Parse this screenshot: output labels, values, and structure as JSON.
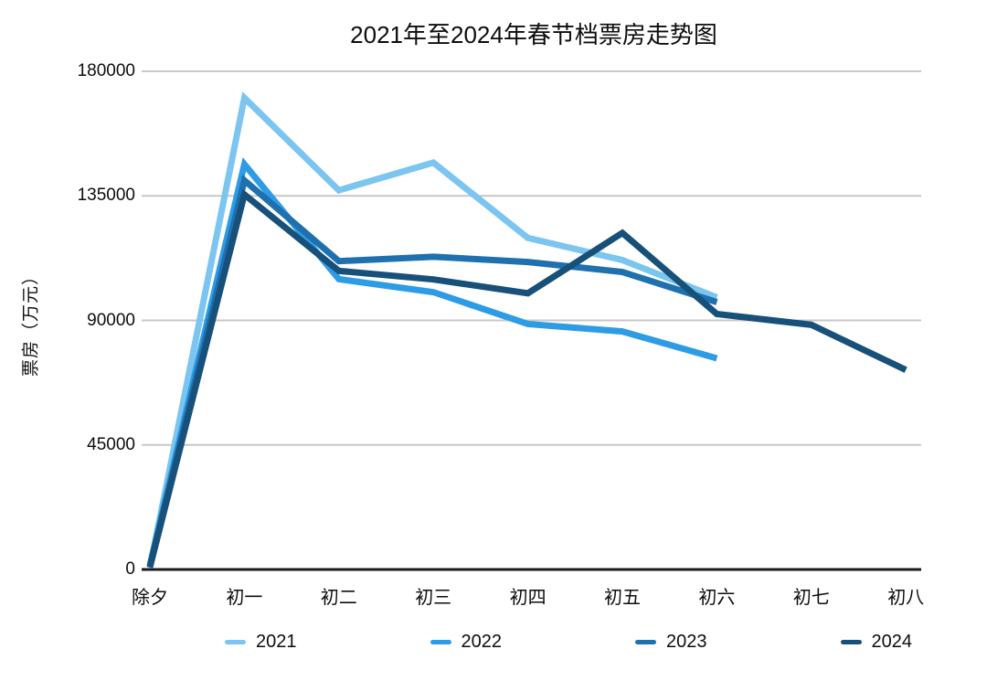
{
  "chart_data": {
    "type": "line",
    "title": "2021年至2024年春节档票房走势图",
    "ylabel": "票房（万元）",
    "xlabel": "",
    "categories": [
      "除夕",
      "初一",
      "初二",
      "初三",
      "初四",
      "初五",
      "初六",
      "初七",
      "初八"
    ],
    "yticks": [
      0,
      45000,
      90000,
      135000,
      180000
    ],
    "ylim": [
      0,
      180000
    ],
    "grid": "horizontal",
    "legend_position": "bottom",
    "series": [
      {
        "name": "2021",
        "color": "#7CC5F1",
        "values": [
          600,
          170400,
          137000,
          147000,
          119800,
          111800,
          98300
        ]
      },
      {
        "name": "2022",
        "color": "#2D9CE5",
        "values": [
          1500,
          146400,
          104900,
          100200,
          88700,
          86000,
          76300
        ]
      },
      {
        "name": "2023",
        "color": "#1E70AF",
        "values": [
          1200,
          140600,
          111400,
          113000,
          111100,
          107500,
          96600
        ]
      },
      {
        "name": "2024",
        "color": "#175079",
        "values": [
          800,
          135500,
          107900,
          104800,
          99800,
          121600,
          92300,
          88400,
          72100
        ]
      }
    ]
  },
  "style": {
    "background": "#ffffff",
    "grid_color": "#c8c8c8",
    "axis_color": "#1a1a1a",
    "text_color": "#0d0d0d"
  }
}
